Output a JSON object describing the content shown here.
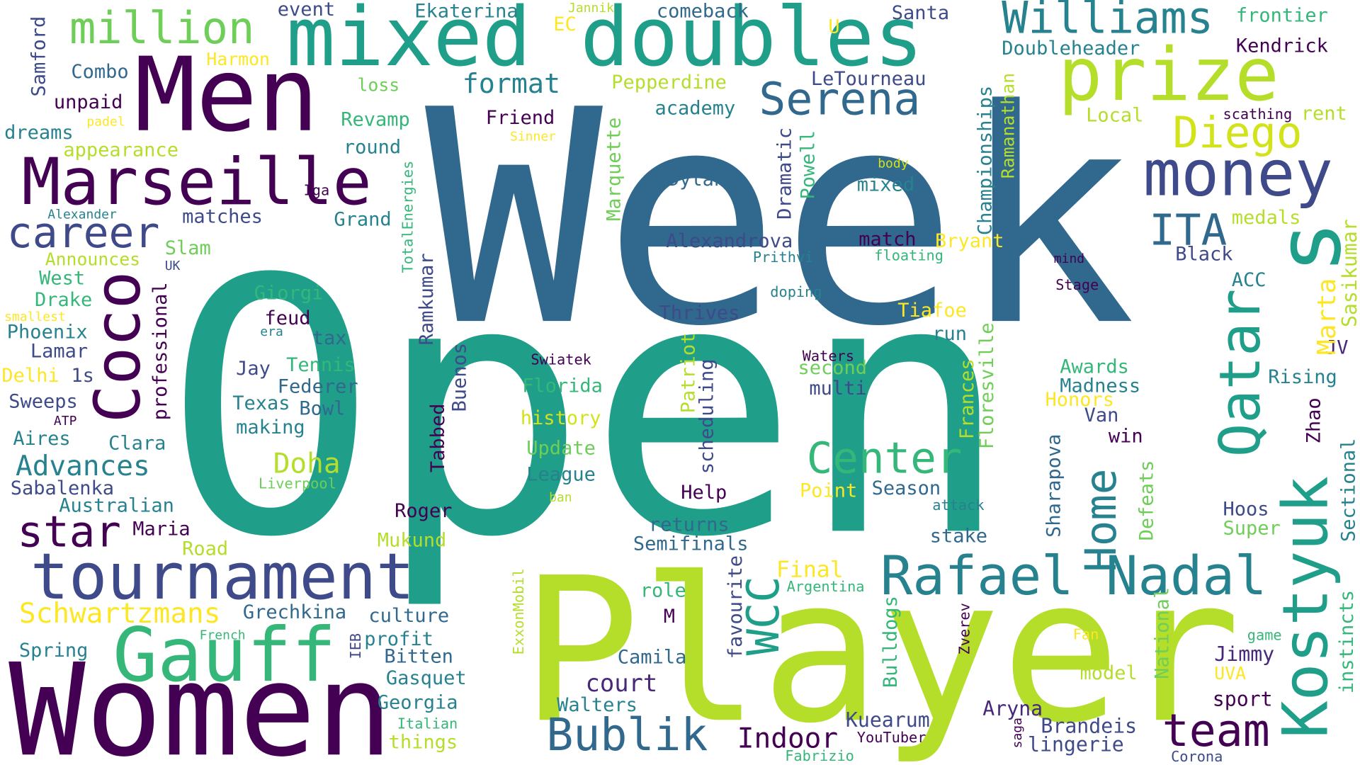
{
  "words": [
    "Open",
    "Week",
    "Player",
    "Women",
    "Men",
    "mixed doubles",
    "prize",
    "Williams",
    "million",
    "Marseille",
    "Serena",
    "money",
    "Diego",
    "ITA",
    "career",
    "format",
    "star",
    "tournament",
    "Gauff",
    "Rafael Nadal",
    "Center",
    "Bublik",
    "court",
    "team",
    "Indoor",
    "Doha",
    "Advances",
    "Schwartzmans",
    "Kuearum",
    "Aryna",
    "Brandeis",
    "lingerie",
    "Jimmy",
    "UVA",
    "sport",
    "Hoos",
    "Super",
    "Rising",
    "JV",
    "Black",
    "ACC",
    "medals",
    "Kendrick",
    "frontier",
    "Local",
    "scathing",
    "rent",
    "Doubleheader",
    "Santa",
    "comeback",
    "Ekaterina",
    "event",
    "Jannik",
    "EC",
    "U",
    "Harmon",
    "Combo",
    "unpaid",
    "padel",
    "dreams",
    "appearance",
    "loss",
    "Revamp",
    "round",
    "Friend",
    "Sinner",
    "Pepperdine",
    "academy",
    "LeTourneau",
    "Dylan",
    "mixed",
    "body",
    "Alexandrova",
    "match",
    "floating",
    "Bryant",
    "Prithvi",
    "mind",
    "Stage",
    "doping",
    "matches",
    "Grand",
    "Iga",
    "Alexander",
    "Slam",
    "Announces",
    "UK",
    "West",
    "Drake",
    "smallest",
    "Phoenix",
    "era",
    "Lamar",
    "Delhi",
    "1s",
    "Sweeps",
    "ATP",
    "Aires",
    "Clara",
    "Sabalenka",
    "Australian",
    "Maria",
    "Road",
    "Spring",
    "French",
    "Grechkina",
    "culture",
    "profit",
    "Bitten",
    "Gasquet",
    "Georgia",
    "Italian",
    "things",
    "Giorgi",
    "feud",
    "tax",
    "Jay",
    "Tennis",
    "Federer",
    "Texas",
    "Bowl",
    "making",
    "Liverpool",
    "Roger",
    "Mukund",
    "Swiatek",
    "Florida",
    "history",
    "Update",
    "League",
    "ban",
    "Thrives",
    "Help",
    "Point",
    "Season",
    "attack",
    "returns",
    "Semifinals",
    "Final",
    "Argentina",
    "role",
    "M",
    "Camila",
    "Walters",
    "Waters",
    "second",
    "multi",
    "Tiafoe",
    "run",
    "stake",
    "Awards",
    "Madness",
    "Honors",
    "Van",
    "win",
    "Fan",
    "model",
    "game",
    "YouTuber",
    "Fabrizio",
    "Corona",
    "Coco",
    "Qatar",
    "Kostyuk",
    "s",
    "WCC",
    "Home",
    "Marta",
    "Sasikumar",
    "Zhao",
    "Sectional",
    "instincts",
    "Championships",
    "Ramanathan",
    "Dramatic",
    "Powell",
    "Marquette",
    "TotalEnergies",
    "Ramkumar",
    "Buenos",
    "Tabbed",
    "professional",
    "Samford",
    "Patriot",
    "scheduling",
    "favourite",
    "ExxonMobil",
    "IEB",
    "Zverev",
    "Bulldogs",
    "National",
    "saga",
    "Defeats",
    "Sharapova",
    "Frances",
    "Floresville"
  ]
}
